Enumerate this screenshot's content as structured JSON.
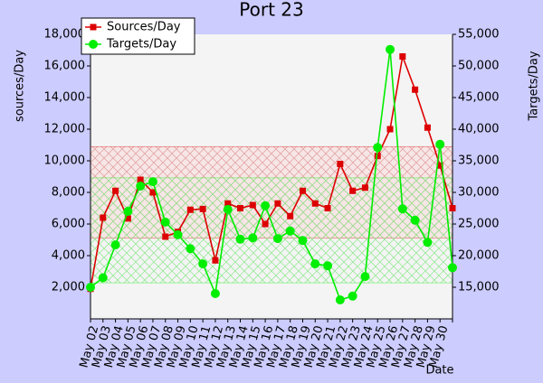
{
  "chart_data": {
    "type": "line",
    "title": "Port 23",
    "y_label": "sources/Day",
    "y2_label": "Targets/Day",
    "x_label": "Date",
    "categories": [
      "May 02",
      "May 03",
      "May 04",
      "May 05",
      "May 06",
      "May 07",
      "May 08",
      "May 09",
      "May 10",
      "May 11",
      "May 12",
      "May 13",
      "May 14",
      "May 15",
      "May 16",
      "May 17",
      "May 18",
      "May 19",
      "May 20",
      "May 21",
      "May 22",
      "May 23",
      "May 24",
      "May 25",
      "May 26",
      "May 27",
      "May 28",
      "May 29",
      "May 30",
      null
    ],
    "series": [
      {
        "name": "Sources/Day",
        "color": "#dd0000",
        "marker": "square",
        "values": [
          1900,
          6400,
          8100,
          6350,
          8800,
          8000,
          5200,
          5500,
          6900,
          6950,
          3700,
          7300,
          7000,
          7200,
          6000,
          7300,
          6500,
          8100,
          7300,
          7000,
          9800,
          8100,
          8300,
          10300,
          12000,
          16600,
          14500,
          12100,
          9700,
          7000
        ],
        "band": [
          5100,
          10900
        ]
      },
      {
        "name": "Targets/Day",
        "color": "#00ee00",
        "marker": "circle",
        "axis": "y2",
        "values": [
          15000,
          16500,
          21700,
          27000,
          31000,
          31700,
          25300,
          23300,
          21100,
          18700,
          14000,
          27300,
          22600,
          22800,
          27900,
          22700,
          23900,
          22400,
          18700,
          18400,
          13000,
          13600,
          16700,
          37100,
          52600,
          27400,
          25600,
          22100,
          37600,
          18100
        ],
        "band": [
          15700,
          32300
        ]
      }
    ],
    "ylim": [
      0,
      18000
    ],
    "yticks": [
      {
        "value": 2000,
        "label": "2,000"
      },
      {
        "value": 4000,
        "label": "4,000"
      },
      {
        "value": 6000,
        "label": "6,000"
      },
      {
        "value": 8000,
        "label": "8,000"
      },
      {
        "value": 10000,
        "label": "10,000"
      },
      {
        "value": 12000,
        "label": "12,000"
      },
      {
        "value": 14000,
        "label": "14,000"
      },
      {
        "value": 16000,
        "label": "16,000"
      },
      {
        "value": 18000,
        "label": "18,000"
      }
    ],
    "y2lim": [
      10000,
      55000
    ],
    "y2ticks": [
      {
        "value": 15000,
        "label": "15,000"
      },
      {
        "value": 20000,
        "label": "20,000"
      },
      {
        "value": 25000,
        "label": "25,000"
      },
      {
        "value": 30000,
        "label": "30,000"
      },
      {
        "value": 35000,
        "label": "35,000"
      },
      {
        "value": 40000,
        "label": "40,000"
      },
      {
        "value": 45000,
        "label": "45,000"
      },
      {
        "value": 50000,
        "label": "50,000"
      },
      {
        "value": 55000,
        "label": "55,000"
      }
    ],
    "legend": "upper left"
  }
}
